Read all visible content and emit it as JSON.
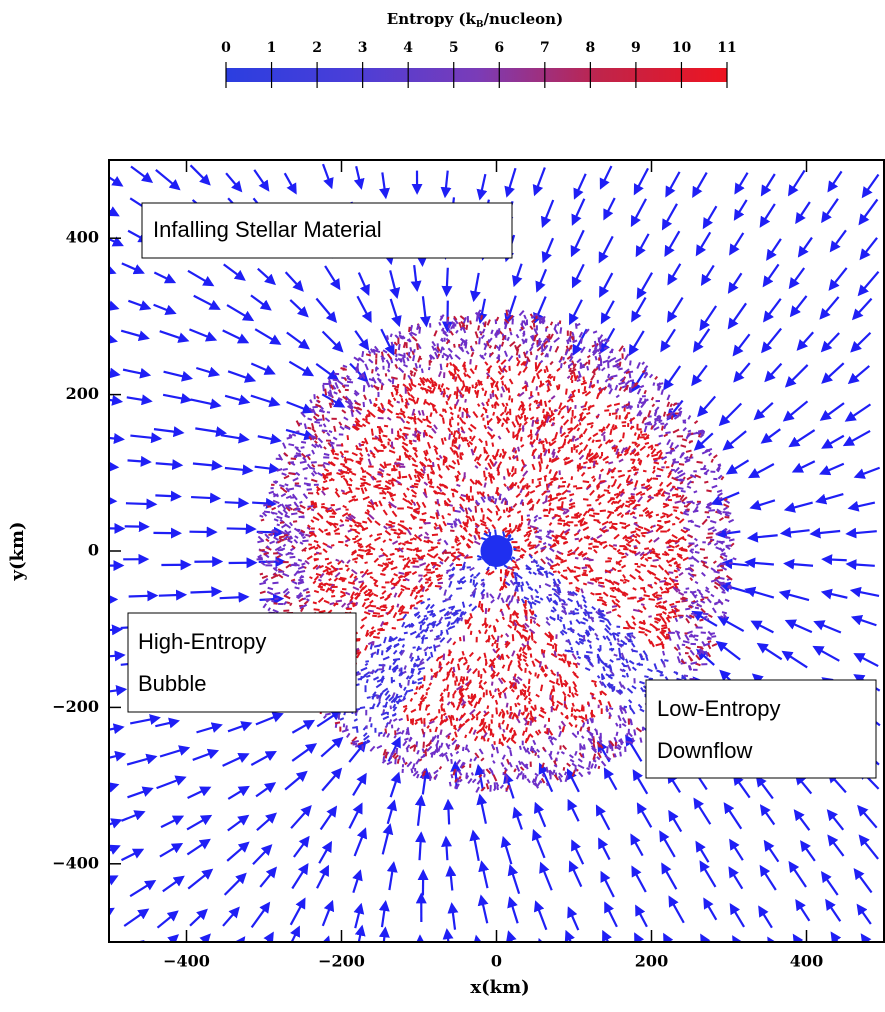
{
  "chart_data": {
    "type": "vector_field",
    "xlabel": "x(km)",
    "ylabel": "y(km)",
    "xlim": [
      -500,
      500
    ],
    "ylim": [
      -500,
      500
    ],
    "xticks": [
      {
        "value": -400,
        "label": "−400"
      },
      {
        "value": -200,
        "label": "−200"
      },
      0,
      200,
      400
    ],
    "yticks": [
      {
        "value": -400,
        "label": "−400"
      },
      {
        "value": -200,
        "label": "−200"
      },
      0,
      200,
      400
    ],
    "colorbar": {
      "label_parts": [
        "Entropy (k",
        "B",
        "/nucleon)"
      ],
      "lim": [
        0,
        11
      ],
      "ticks": [
        0,
        1,
        2,
        3,
        4,
        5,
        6,
        7,
        8,
        9,
        10,
        11
      ],
      "colors": [
        "#2b3ee0",
        "#4a3ed8",
        "#7a3cb8",
        "#c0244a",
        "#ee1420"
      ]
    },
    "annotations": [
      {
        "lines": [
          "Infalling Stellar Material"
        ]
      },
      {
        "lines": [
          "High-Entropy",
          "Bubble"
        ]
      },
      {
        "lines": [
          "Low-Entropy",
          "Downflow"
        ]
      }
    ]
  }
}
